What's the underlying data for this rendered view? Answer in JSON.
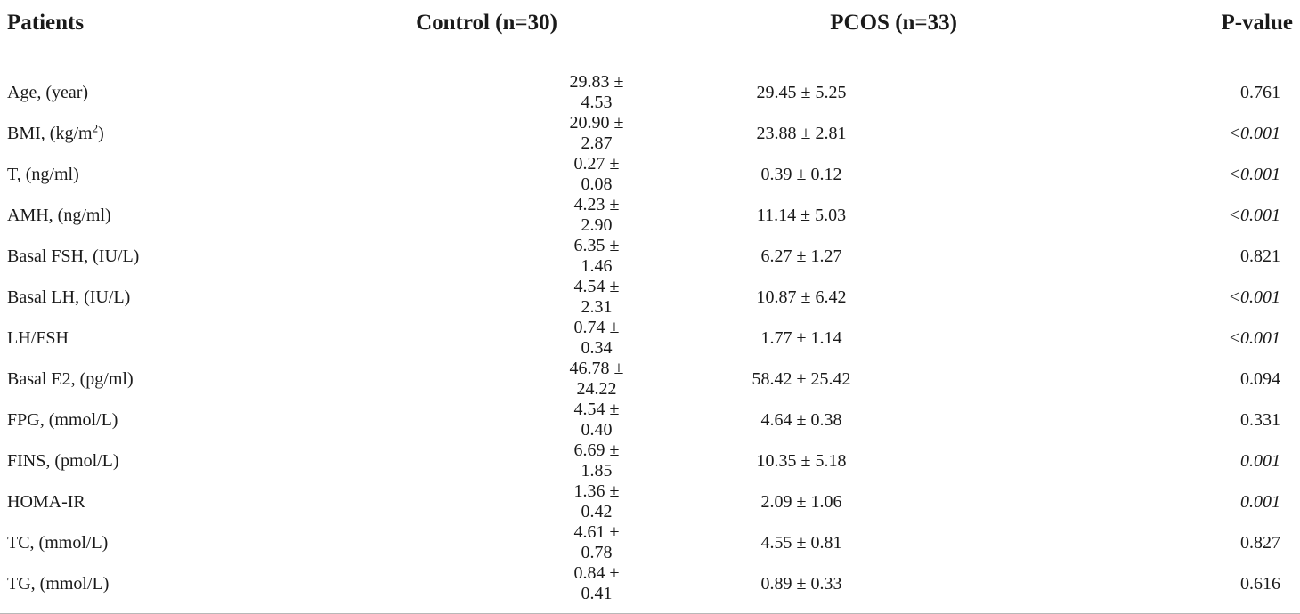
{
  "table": {
    "headers": {
      "patients": "Patients",
      "control": "Control (n=30)",
      "pcos": "PCOS (n=33)",
      "pvalue": "P-value"
    },
    "rows": [
      {
        "label": "Age, (year)",
        "label_pre": "",
        "label_sup": "",
        "label_post": "",
        "control": "29.83 ± 4.53",
        "pcos": "29.45 ± 5.25",
        "p": "0.761",
        "significant": false
      },
      {
        "label": "",
        "label_pre": "BMI, (kg/m",
        "label_sup": "2",
        "label_post": ")",
        "control": "20.90 ± 2.87",
        "pcos": "23.88 ± 2.81",
        "p": "<0.001",
        "significant": true
      },
      {
        "label": "T, (ng/ml)",
        "label_pre": "",
        "label_sup": "",
        "label_post": "",
        "control": "0.27 ± 0.08",
        "pcos": "0.39 ± 0.12",
        "p": "<0.001",
        "significant": true
      },
      {
        "label": "AMH, (ng/ml)",
        "label_pre": "",
        "label_sup": "",
        "label_post": "",
        "control": "4.23 ± 2.90",
        "pcos": "11.14 ± 5.03",
        "p": "<0.001",
        "significant": true
      },
      {
        "label": "Basal FSH, (IU/L)",
        "label_pre": "",
        "label_sup": "",
        "label_post": "",
        "control": "6.35 ± 1.46",
        "pcos": "6.27 ± 1.27",
        "p": "0.821",
        "significant": false
      },
      {
        "label": "Basal LH, (IU/L)",
        "label_pre": "",
        "label_sup": "",
        "label_post": "",
        "control": "4.54 ± 2.31",
        "pcos": "10.87 ± 6.42",
        "p": "<0.001",
        "significant": true
      },
      {
        "label": "LH/FSH",
        "label_pre": "",
        "label_sup": "",
        "label_post": "",
        "control": "0.74 ± 0.34",
        "pcos": "1.77 ± 1.14",
        "p": "<0.001",
        "significant": true
      },
      {
        "label": "Basal E2, (pg/ml)",
        "label_pre": "",
        "label_sup": "",
        "label_post": "",
        "control": "46.78 ± 24.22",
        "pcos": "58.42 ± 25.42",
        "p": "0.094",
        "significant": false
      },
      {
        "label": "FPG, (mmol/L)",
        "label_pre": "",
        "label_sup": "",
        "label_post": "",
        "control": "4.54 ± 0.40",
        "pcos": "4.64 ± 0.38",
        "p": "0.331",
        "significant": false
      },
      {
        "label": "FINS, (pmol/L)",
        "label_pre": "",
        "label_sup": "",
        "label_post": "",
        "control": "6.69 ± 1.85",
        "pcos": "10.35 ± 5.18",
        "p": "0.001",
        "significant": true
      },
      {
        "label": "HOMA-IR",
        "label_pre": "",
        "label_sup": "",
        "label_post": "",
        "control": "1.36 ± 0.42",
        "pcos": "2.09 ± 1.06",
        "p": "0.001",
        "significant": true
      },
      {
        "label": "TC, (mmol/L)",
        "label_pre": "",
        "label_sup": "",
        "label_post": "",
        "control": "4.61 ± 0.78",
        "pcos": "4.55 ± 0.81",
        "p": "0.827",
        "significant": false
      },
      {
        "label": "TG, (mmol/L)",
        "label_pre": "",
        "label_sup": "",
        "label_post": "",
        "control": "0.84 ± 0.41",
        "pcos": "0.89 ± 0.33",
        "p": "0.616",
        "significant": false
      }
    ]
  }
}
